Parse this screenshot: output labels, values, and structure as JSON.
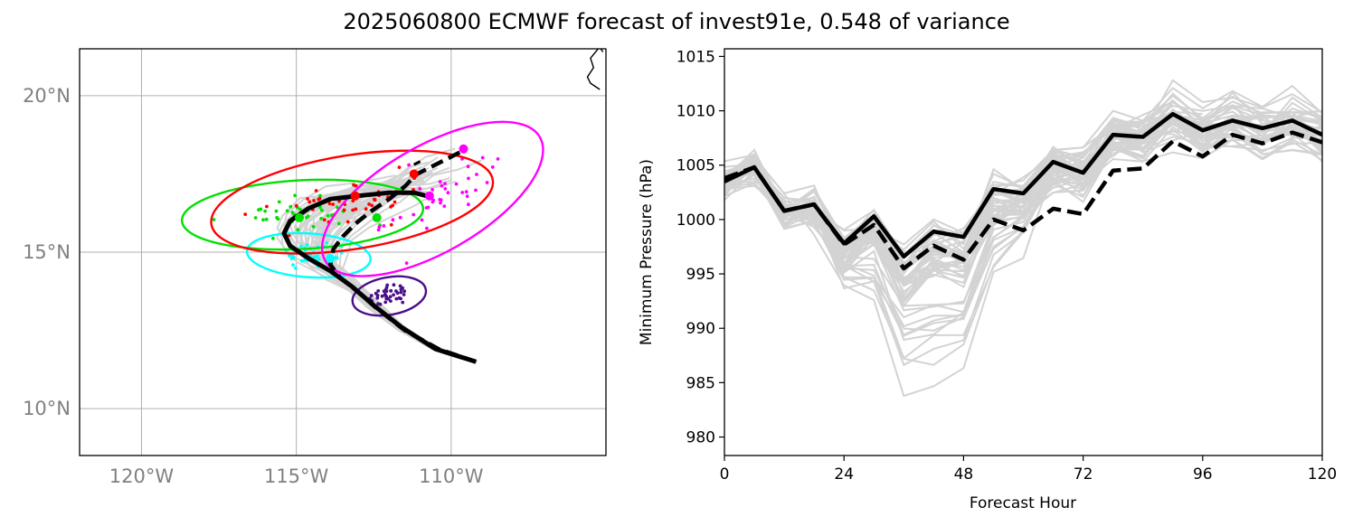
{
  "title": "2025060800 ECMWF forecast of invest91e, 0.548 of variance",
  "colors": {
    "ensemble": "#d3d3d3",
    "mean": "#000000",
    "control_dashed": "#000000",
    "grid": "#b0b0b0",
    "map_tick_label": "#808080",
    "ellipse_day1": "#4b0f8a",
    "ellipse_day2": "#00ffff",
    "ellipse_day3": "#00e000",
    "ellipse_day4": "#ff0000",
    "ellipse_day5": "#ff00ff"
  },
  "chart_data": [
    {
      "type": "scatter",
      "subtype": "track-map",
      "lat_ticks": [
        10,
        15,
        20
      ],
      "lat_tick_labels": [
        "10°N",
        "15°N",
        "20°N"
      ],
      "lon_ticks": [
        -120,
        -115,
        -110
      ],
      "lon_tick_labels": [
        "120°W",
        "115°W",
        "110°W"
      ],
      "xlim": [
        -122,
        -105
      ],
      "ylim": [
        8.5,
        21.5
      ],
      "grid": true,
      "mean_track": [
        [
          -109.2,
          11.5
        ],
        [
          -110.5,
          11.9
        ],
        [
          -111.6,
          12.6
        ],
        [
          -112.5,
          13.3
        ],
        [
          -113.2,
          13.9
        ],
        [
          -113.9,
          14.4
        ],
        [
          -114.6,
          14.8
        ],
        [
          -115.2,
          15.2
        ],
        [
          -115.4,
          15.6
        ],
        [
          -115.2,
          16.0
        ],
        [
          -114.6,
          16.4
        ],
        [
          -113.9,
          16.7
        ],
        [
          -113.0,
          16.8
        ],
        [
          -112.0,
          16.9
        ],
        [
          -111.2,
          16.9
        ],
        [
          -110.8,
          16.8
        ]
      ],
      "dashed_track": [
        [
          -109.2,
          11.5
        ],
        [
          -110.4,
          11.9
        ],
        [
          -111.5,
          12.5
        ],
        [
          -112.4,
          13.2
        ],
        [
          -113.1,
          13.8
        ],
        [
          -113.6,
          14.2
        ],
        [
          -113.9,
          14.6
        ],
        [
          -113.8,
          15.1
        ],
        [
          -113.5,
          15.5
        ],
        [
          -113.1,
          15.9
        ],
        [
          -112.6,
          16.3
        ],
        [
          -112.0,
          16.7
        ],
        [
          -111.5,
          17.1
        ],
        [
          -111.1,
          17.5
        ],
        [
          -110.5,
          17.8
        ],
        [
          -109.7,
          18.2
        ]
      ],
      "dashed_fragment": [
        [
          -111.2,
          17.8
        ],
        [
          -111.0,
          17.9
        ]
      ],
      "mean_markers": [
        {
          "lon": -113.1,
          "lat": 16.8,
          "color": "#ff0000"
        },
        {
          "lon": -111.2,
          "lat": 17.5,
          "color": "#ff0000"
        },
        {
          "lon": -114.9,
          "lat": 16.1,
          "color": "#00e000"
        },
        {
          "lon": -112.4,
          "lat": 16.1,
          "color": "#00e000"
        },
        {
          "lon": -110.7,
          "lat": 16.8,
          "color": "#ff00ff"
        },
        {
          "lon": -109.6,
          "lat": 18.3,
          "color": "#ff00ff"
        },
        {
          "lon": -113.9,
          "lat": 14.8,
          "color": "#00ffff"
        }
      ],
      "ellipses": [
        {
          "name": "day1",
          "color": "#4b0f8a",
          "center": [
            -112.0,
            13.6
          ],
          "semi_axes_deg": [
            1.2,
            0.6
          ],
          "angle_deg": 10
        },
        {
          "name": "day2",
          "color": "#00ffff",
          "center": [
            -114.6,
            14.9
          ],
          "semi_axes_deg": [
            2.0,
            0.7
          ],
          "angle_deg": -4
        },
        {
          "name": "day3",
          "color": "#00e000",
          "center": [
            -114.8,
            16.2
          ],
          "semi_axes_deg": [
            3.9,
            1.1
          ],
          "angle_deg": 3
        },
        {
          "name": "day4",
          "color": "#ff0000",
          "center": [
            -113.2,
            16.6
          ],
          "semi_axes_deg": [
            4.6,
            1.5
          ],
          "angle_deg": 9
        },
        {
          "name": "day5",
          "color": "#ff00ff",
          "center": [
            -110.6,
            16.7
          ],
          "semi_axes_deg": [
            4.0,
            1.7
          ],
          "angle_deg": 30
        }
      ],
      "coastline": [
        [
          -105.2,
          20.2
        ],
        [
          -105.5,
          20.4
        ],
        [
          -105.6,
          20.6
        ],
        [
          -105.4,
          20.9
        ],
        [
          -105.5,
          21.2
        ],
        [
          -105.25,
          21.5
        ],
        [
          -105.3,
          21.7
        ]
      ],
      "coastline_fragment": [
        [
          -105.1,
          21.4
        ],
        [
          -105.2,
          21.55
        ],
        [
          -105.25,
          21.75
        ]
      ]
    },
    {
      "type": "line",
      "xlabel": "Forecast Hour",
      "ylabel": "Minimum Pressure (hPa)",
      "xlim": [
        0,
        120
      ],
      "ylim": [
        978.3,
        1015.7
      ],
      "xticks": [
        0,
        24,
        48,
        72,
        96,
        120
      ],
      "yticks": [
        980,
        985,
        990,
        995,
        1000,
        1005,
        1010,
        1015
      ],
      "x": [
        0,
        6,
        12,
        18,
        24,
        30,
        36,
        42,
        48,
        54,
        60,
        66,
        72,
        78,
        84,
        90,
        96,
        102,
        108,
        114,
        120
      ],
      "series": [
        {
          "role": "mean",
          "style": "solid",
          "values": [
            1003.5,
            1004.8,
            1000.8,
            1001.4,
            997.8,
            1000.3,
            996.6,
            998.9,
            998.4,
            1002.8,
            1002.4,
            1005.3,
            1004.3,
            1007.8,
            1007.6,
            1009.7,
            1008.2,
            1009.1,
            1008.4,
            1009.1,
            1007.8
          ]
        },
        {
          "role": "control",
          "style": "dashed",
          "values": [
            1003.8,
            1004.8,
            1000.8,
            1001.4,
            997.7,
            999.5,
            995.5,
            997.6,
            996.3,
            1000.0,
            999.0,
            1001.0,
            1000.5,
            1004.5,
            1004.7,
            1007.2,
            1005.8,
            1007.8,
            1007.0,
            1008.0,
            1007.1
          ]
        }
      ]
    }
  ]
}
